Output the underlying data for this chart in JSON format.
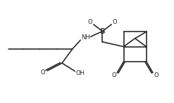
{
  "background_color": "#ffffff",
  "line_color": "#2a2a2a",
  "line_width": 1.2,
  "fig_width": 2.47,
  "fig_height": 1.47,
  "dpi": 100,
  "xlim": [
    0,
    1
  ],
  "ylim": [
    0,
    1
  ]
}
